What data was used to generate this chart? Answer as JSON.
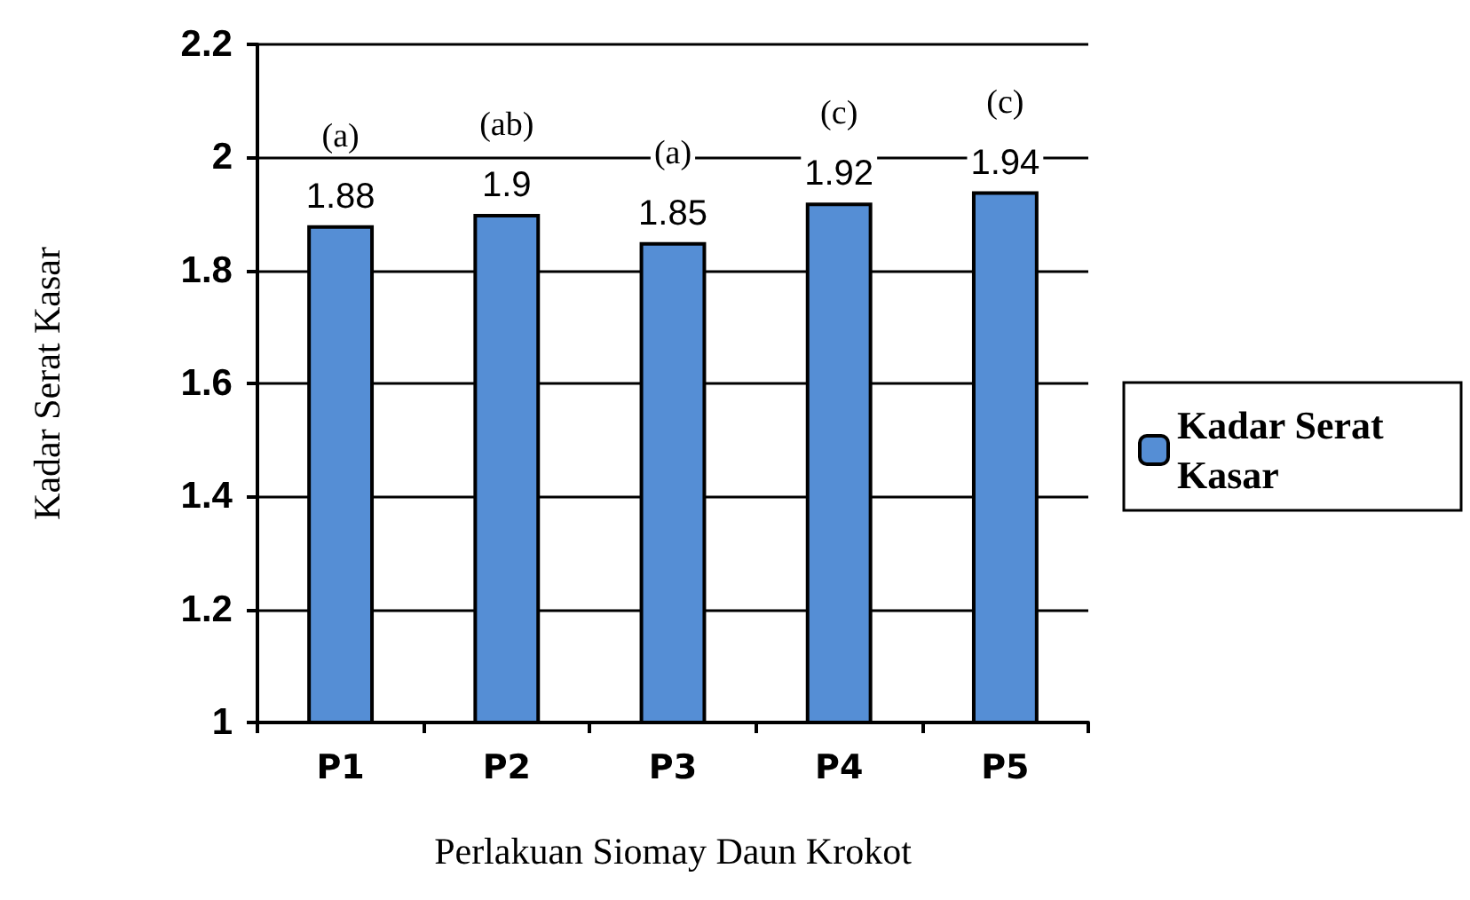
{
  "chart_data": {
    "type": "bar",
    "xlabel": "Perlakuan Siomay Daun Krokot",
    "ylabel": "Kadar Serat Kasar",
    "categories": [
      "P1",
      "P2",
      "P3",
      "P4",
      "P5"
    ],
    "series": [
      {
        "name": "Kadar Serat Kasar",
        "color": "#558ed5",
        "values": [
          1.88,
          1.9,
          1.85,
          1.92,
          1.94
        ]
      }
    ],
    "ylim": [
      1,
      2.2
    ],
    "yticks": [
      1,
      1.2,
      1.4,
      1.6,
      1.8,
      2,
      2.2
    ],
    "grid": "y",
    "legend": "right",
    "data_labels": true,
    "annotations": [
      "(a)",
      "(ab)",
      "(a)",
      "(c)",
      "(c)"
    ]
  }
}
